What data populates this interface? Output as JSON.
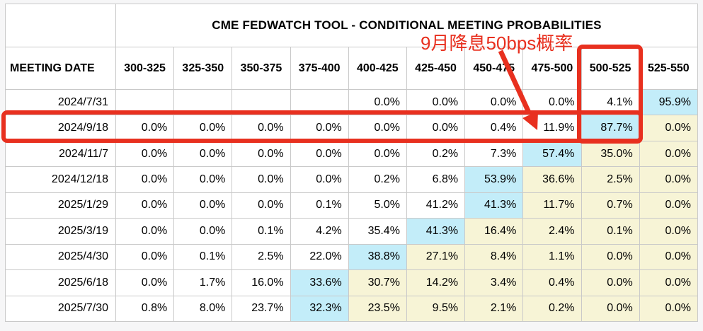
{
  "table": {
    "title": "CME FEDWATCH TOOL - CONDITIONAL MEETING PROBABILITIES",
    "date_header": "MEETING DATE",
    "rate_headers": [
      "300-325",
      "325-350",
      "350-375",
      "375-400",
      "400-425",
      "425-450",
      "450-475",
      "475-500",
      "500-525",
      "525-550"
    ],
    "rows": [
      {
        "date": "2024/7/31",
        "cells": [
          "",
          "",
          "",
          "",
          "0.0%",
          "0.0%",
          "0.0%",
          "0.0%",
          "4.1%",
          "95.9%"
        ],
        "bg": [
          "",
          "",
          "",
          "",
          "",
          "",
          "",
          "",
          "",
          "c"
        ]
      },
      {
        "date": "2024/9/18",
        "cells": [
          "0.0%",
          "0.0%",
          "0.0%",
          "0.0%",
          "0.0%",
          "0.0%",
          "0.4%",
          "11.9%",
          "87.7%",
          "0.0%"
        ],
        "bg": [
          "",
          "",
          "",
          "",
          "",
          "",
          "",
          "",
          "c",
          "y"
        ]
      },
      {
        "date": "2024/11/7",
        "cells": [
          "0.0%",
          "0.0%",
          "0.0%",
          "0.0%",
          "0.0%",
          "0.2%",
          "7.3%",
          "57.4%",
          "35.0%",
          "0.0%"
        ],
        "bg": [
          "",
          "",
          "",
          "",
          "",
          "",
          "",
          "c",
          "y",
          "y"
        ]
      },
      {
        "date": "2024/12/18",
        "cells": [
          "0.0%",
          "0.0%",
          "0.0%",
          "0.0%",
          "0.2%",
          "6.8%",
          "53.9%",
          "36.6%",
          "2.5%",
          "0.0%"
        ],
        "bg": [
          "",
          "",
          "",
          "",
          "",
          "",
          "c",
          "y",
          "y",
          "y"
        ]
      },
      {
        "date": "2025/1/29",
        "cells": [
          "0.0%",
          "0.0%",
          "0.0%",
          "0.1%",
          "5.0%",
          "41.2%",
          "41.3%",
          "11.7%",
          "0.7%",
          "0.0%"
        ],
        "bg": [
          "",
          "",
          "",
          "",
          "",
          "",
          "c",
          "y",
          "y",
          "y"
        ]
      },
      {
        "date": "2025/3/19",
        "cells": [
          "0.0%",
          "0.0%",
          "0.1%",
          "4.2%",
          "35.4%",
          "41.3%",
          "16.4%",
          "2.4%",
          "0.1%",
          "0.0%"
        ],
        "bg": [
          "",
          "",
          "",
          "",
          "",
          "c",
          "y",
          "y",
          "y",
          "y"
        ]
      },
      {
        "date": "2025/4/30",
        "cells": [
          "0.0%",
          "0.1%",
          "2.5%",
          "22.0%",
          "38.8%",
          "27.1%",
          "8.4%",
          "1.1%",
          "0.0%",
          "0.0%"
        ],
        "bg": [
          "",
          "",
          "",
          "",
          "c",
          "y",
          "y",
          "y",
          "y",
          "y"
        ]
      },
      {
        "date": "2025/6/18",
        "cells": [
          "0.0%",
          "1.7%",
          "16.0%",
          "33.6%",
          "30.7%",
          "14.2%",
          "3.4%",
          "0.4%",
          "0.0%",
          "0.0%"
        ],
        "bg": [
          "",
          "",
          "",
          "c",
          "y",
          "y",
          "y",
          "y",
          "y",
          "y"
        ]
      },
      {
        "date": "2025/7/30",
        "cells": [
          "0.8%",
          "8.0%",
          "23.7%",
          "32.3%",
          "23.5%",
          "9.5%",
          "2.1%",
          "0.2%",
          "0.0%",
          "0.0%"
        ],
        "bg": [
          "",
          "",
          "",
          "c",
          "y",
          "y",
          "y",
          "y",
          "y",
          "y"
        ]
      }
    ]
  },
  "annotation": {
    "label": "9月降息50bps概率"
  },
  "colors": {
    "red": "#e8301f",
    "cyan_highlight": "#c3edf9",
    "yellow_highlight": "#f7f4d6",
    "grid": "#c9c9c9"
  }
}
